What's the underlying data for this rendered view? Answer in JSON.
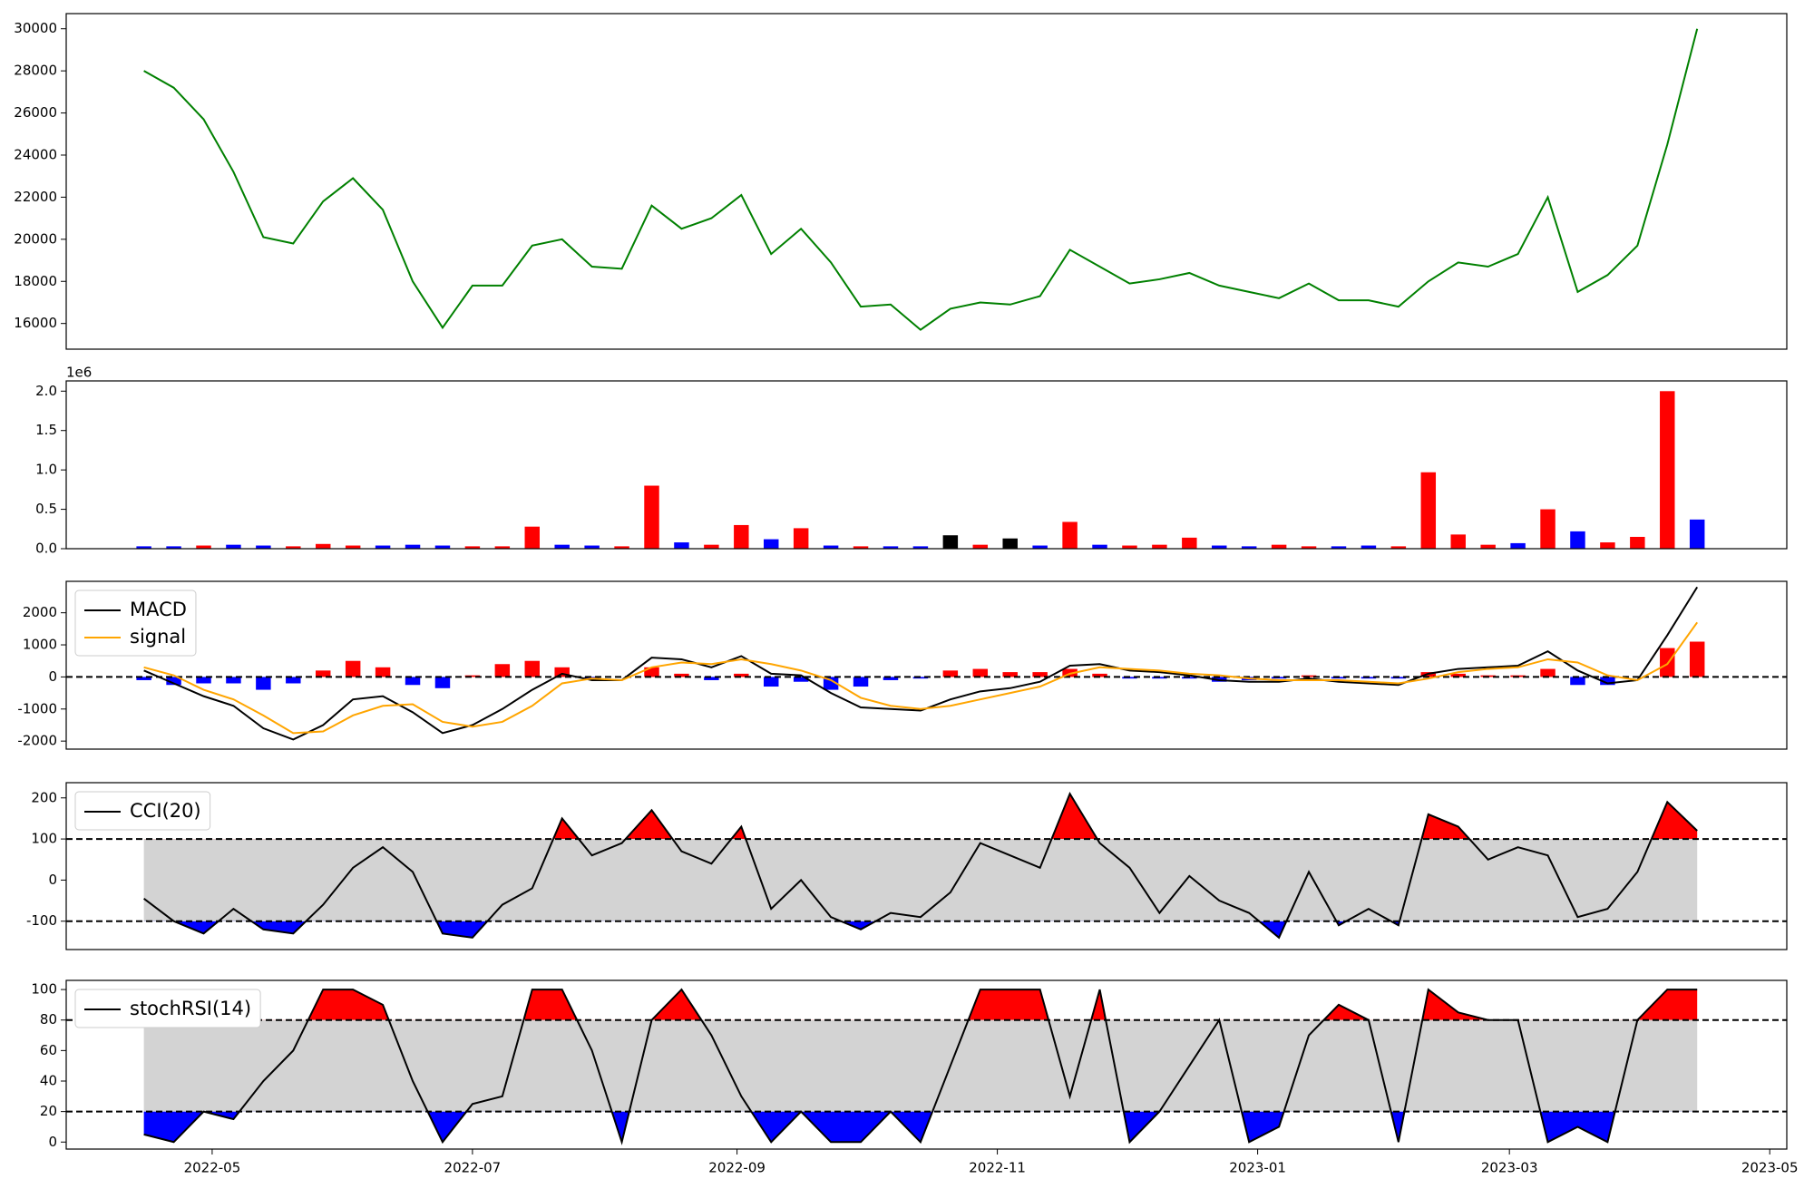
{
  "chart_data": [
    {
      "type": "line",
      "xlim": [
        -2.6,
        55
      ],
      "ylim": [
        14780,
        30720
      ],
      "yticks": [
        16000,
        18000,
        20000,
        22000,
        24000,
        26000,
        28000,
        30000
      ],
      "series": [
        {
          "color": "green",
          "values": [
            28000,
            27200,
            25700,
            23200,
            20100,
            19800,
            21800,
            22900,
            21400,
            18000,
            15800,
            17800,
            17800,
            19700,
            20000,
            18700,
            18600,
            21600,
            20500,
            21000,
            22100,
            19300,
            20500,
            18900,
            16800,
            16900,
            15700,
            16700,
            17000,
            16900,
            17300,
            19500,
            18700,
            17900,
            18100,
            18400,
            17800,
            17500,
            17200,
            17900,
            17100,
            17100,
            16800,
            18000,
            18900,
            18700,
            19300,
            22000,
            17500,
            18300,
            19700,
            24500,
            30000
          ]
        }
      ]
    },
    {
      "type": "bar",
      "xlim": [
        -2.6,
        55
      ],
      "ylim": [
        0,
        2.13
      ],
      "offset_label": "1e6",
      "yticks": [
        {
          "value": 0,
          "label": "0.0"
        },
        0.5,
        {
          "value": 1,
          "label": "1.0"
        },
        1.5,
        {
          "value": 2,
          "label": "2.0"
        }
      ],
      "values": [
        0.03,
        0.03,
        0.04,
        0.05,
        0.04,
        0.03,
        0.06,
        0.04,
        0.04,
        0.05,
        0.04,
        0.03,
        0.03,
        0.28,
        0.05,
        0.04,
        0.03,
        0.8,
        0.08,
        0.05,
        0.3,
        0.12,
        0.26,
        0.04,
        0.03,
        0.03,
        0.03,
        0.17,
        0.05,
        0.13,
        0.04,
        0.34,
        0.05,
        0.04,
        0.05,
        0.14,
        0.04,
        0.03,
        0.05,
        0.03,
        0.03,
        0.04,
        0.03,
        0.97,
        0.18,
        0.05,
        0.07,
        0.5,
        0.22,
        0.08,
        0.15,
        2.0,
        0.37
      ],
      "colors": [
        "blue",
        "blue",
        "red",
        "blue",
        "blue",
        "red",
        "red",
        "red",
        "blue",
        "blue",
        "blue",
        "red",
        "red",
        "red",
        "blue",
        "blue",
        "red",
        "red",
        "blue",
        "red",
        "red",
        "blue",
        "red",
        "blue",
        "red",
        "blue",
        "blue",
        "black",
        "red",
        "black",
        "blue",
        "red",
        "blue",
        "red",
        "red",
        "red",
        "blue",
        "blue",
        "red",
        "red",
        "blue",
        "blue",
        "red",
        "red",
        "red",
        "red",
        "blue",
        "red",
        "blue",
        "red",
        "red",
        "red",
        "blue"
      ]
    },
    {
      "type": "line",
      "xlim": [
        -2.6,
        55
      ],
      "ylim": [
        -2250,
        2980
      ],
      "yticks": [
        -2000,
        -1000,
        0,
        1000,
        2000
      ],
      "legend": "upper left",
      "thresholds": [
        0
      ],
      "series": [
        {
          "name": "MACD",
          "color": "black",
          "values": [
            200,
            -200,
            -600,
            -900,
            -1600,
            -1950,
            -1500,
            -700,
            -600,
            -1100,
            -1750,
            -1500,
            -1000,
            -400,
            100,
            -100,
            -100,
            600,
            550,
            300,
            650,
            100,
            50,
            -500,
            -950,
            -1000,
            -1050,
            -700,
            -450,
            -350,
            -150,
            350,
            400,
            200,
            150,
            50,
            -100,
            -150,
            -150,
            -50,
            -150,
            -200,
            -250,
            100,
            250,
            300,
            350,
            800,
            200,
            -200,
            -100,
            1300,
            2800
          ]
        },
        {
          "name": "signal",
          "color": "orange",
          "values": [
            300,
            50,
            -400,
            -700,
            -1200,
            -1750,
            -1700,
            -1200,
            -900,
            -850,
            -1400,
            -1550,
            -1400,
            -900,
            -200,
            -50,
            -100,
            300,
            450,
            400,
            550,
            400,
            200,
            -100,
            -650,
            -900,
            -1000,
            -900,
            -700,
            -500,
            -300,
            100,
            300,
            250,
            200,
            100,
            50,
            -50,
            -100,
            -100,
            -100,
            -150,
            -200,
            -50,
            150,
            250,
            300,
            550,
            450,
            50,
            -100,
            400,
            1700
          ]
        }
      ],
      "histogram": {
        "up_color": "red",
        "down_color": "blue",
        "values": [
          -100,
          -250,
          -200,
          -200,
          -400,
          -200,
          200,
          500,
          300,
          -250,
          -350,
          50,
          400,
          500,
          300,
          -50,
          0,
          300,
          100,
          -100,
          100,
          -300,
          -150,
          -400,
          -300,
          -100,
          -50,
          200,
          250,
          150,
          150,
          250,
          100,
          -50,
          -50,
          -50,
          -150,
          -100,
          -50,
          50,
          -50,
          -50,
          -50,
          150,
          100,
          50,
          50,
          250,
          -250,
          -250,
          0,
          900,
          1100
        ]
      }
    },
    {
      "type": "line",
      "xlim": [
        -2.6,
        55
      ],
      "ylim": [
        -169,
        237
      ],
      "yticks": [
        -100,
        0,
        100,
        200
      ],
      "legend": "upper left",
      "thresholds": [
        100,
        -100
      ],
      "band_color": "lightgray",
      "upper_color": "red",
      "lower_color": "blue",
      "series": [
        {
          "name": "CCI(20)",
          "color": "black",
          "values": [
            -45,
            -100,
            -130,
            -70,
            -120,
            -130,
            -60,
            30,
            80,
            20,
            -130,
            -140,
            -60,
            -20,
            150,
            60,
            90,
            170,
            70,
            40,
            130,
            -70,
            0,
            -90,
            -120,
            -80,
            -90,
            -30,
            90,
            60,
            30,
            210,
            90,
            30,
            -80,
            10,
            -50,
            -80,
            -140,
            20,
            -110,
            -70,
            -110,
            160,
            130,
            50,
            80,
            60,
            -90,
            -70,
            20,
            190,
            120
          ]
        }
      ]
    },
    {
      "type": "line",
      "xlim": [
        -2.6,
        55
      ],
      "ylim": [
        -4.6,
        106
      ],
      "yticks": [
        0,
        20,
        40,
        60,
        80,
        100
      ],
      "legend": "upper left",
      "thresholds": [
        80,
        20
      ],
      "band_color": "lightgray",
      "upper_color": "red",
      "lower_color": "blue",
      "xticks": [
        {
          "value": 2.286,
          "label": "2022-05"
        },
        {
          "value": 11.0,
          "label": "2022-07"
        },
        {
          "value": 19.857,
          "label": "2022-09"
        },
        {
          "value": 28.571,
          "label": "2022-11"
        },
        {
          "value": 37.286,
          "label": "2023-01"
        },
        {
          "value": 45.714,
          "label": "2023-03"
        },
        {
          "value": 54.429,
          "label": "2023-05"
        }
      ],
      "series": [
        {
          "name": "stochRSI(14)",
          "color": "black",
          "values": [
            5,
            0,
            20,
            15,
            40,
            60,
            100,
            100,
            90,
            40,
            0,
            25,
            30,
            100,
            100,
            60,
            0,
            80,
            100,
            70,
            30,
            0,
            20,
            0,
            0,
            20,
            0,
            50,
            100,
            100,
            100,
            30,
            100,
            0,
            20,
            50,
            80,
            0,
            10,
            70,
            90,
            80,
            0,
            100,
            85,
            80,
            80,
            0,
            10,
            0,
            80,
            100,
            100
          ]
        }
      ]
    }
  ]
}
